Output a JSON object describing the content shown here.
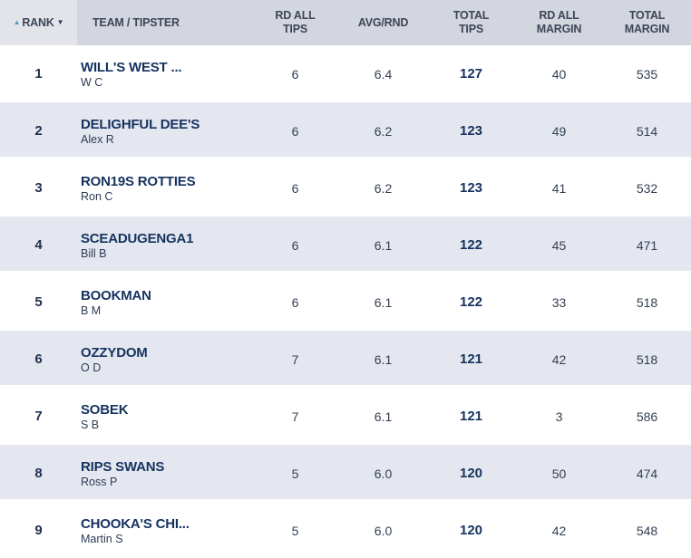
{
  "colors": {
    "header_bg": "#d3d6df",
    "rank_header_bg": "#e2e4ea",
    "stripe_row_bg": "#e4e7ef",
    "navy_text": "#15325f",
    "header_text": "#3d4657",
    "number_text": "#333f53",
    "sort_asc_arrow": "#4d9cba",
    "sort_desc_arrow": "#2e3a50"
  },
  "icons": {
    "sort_asc": "▲",
    "sort_desc": "▼"
  },
  "table": {
    "columns": [
      {
        "id": "rank",
        "line1": "RANK"
      },
      {
        "id": "team_tipster",
        "line1": "TEAM / TIPSTER"
      },
      {
        "id": "rd_all_tips",
        "line1": "RD ALL",
        "line2": "TIPS"
      },
      {
        "id": "avg_rnd",
        "line1": "AVG/RND"
      },
      {
        "id": "total_tips",
        "line1": "TOTAL",
        "line2": "TIPS"
      },
      {
        "id": "rd_all_margin",
        "line1": "RD ALL",
        "line2": "MARGIN"
      },
      {
        "id": "total_margin",
        "line1": "TOTAL",
        "line2": "MARGIN"
      }
    ],
    "rows": [
      {
        "rank": "1",
        "team": "WILL'S WEST ...",
        "tipster": "W C",
        "rd_all_tips": "6",
        "avg_rnd": "6.4",
        "total_tips": "127",
        "rd_all_margin": "40",
        "total_margin": "535"
      },
      {
        "rank": "2",
        "team": "DELIGHFUL DEE'S",
        "tipster": "Alex R",
        "rd_all_tips": "6",
        "avg_rnd": "6.2",
        "total_tips": "123",
        "rd_all_margin": "49",
        "total_margin": "514"
      },
      {
        "rank": "3",
        "team": "RON19S ROTTIES",
        "tipster": "Ron C",
        "rd_all_tips": "6",
        "avg_rnd": "6.2",
        "total_tips": "123",
        "rd_all_margin": "41",
        "total_margin": "532"
      },
      {
        "rank": "4",
        "team": "SCEADUGENGA1",
        "tipster": "Bill B",
        "rd_all_tips": "6",
        "avg_rnd": "6.1",
        "total_tips": "122",
        "rd_all_margin": "45",
        "total_margin": "471"
      },
      {
        "rank": "5",
        "team": "BOOKMAN",
        "tipster": "B M",
        "rd_all_tips": "6",
        "avg_rnd": "6.1",
        "total_tips": "122",
        "rd_all_margin": "33",
        "total_margin": "518"
      },
      {
        "rank": "6",
        "team": "OZZYDOM",
        "tipster": "O D",
        "rd_all_tips": "7",
        "avg_rnd": "6.1",
        "total_tips": "121",
        "rd_all_margin": "42",
        "total_margin": "518"
      },
      {
        "rank": "7",
        "team": "SOBEK",
        "tipster": "S B",
        "rd_all_tips": "7",
        "avg_rnd": "6.1",
        "total_tips": "121",
        "rd_all_margin": "3",
        "total_margin": "586"
      },
      {
        "rank": "8",
        "team": "RIPS SWANS",
        "tipster": "Ross P",
        "rd_all_tips": "5",
        "avg_rnd": "6.0",
        "total_tips": "120",
        "rd_all_margin": "50",
        "total_margin": "474"
      },
      {
        "rank": "9",
        "team": "CHOOKA'S CHI...",
        "tipster": "Martin S",
        "rd_all_tips": "5",
        "avg_rnd": "6.0",
        "total_tips": "120",
        "rd_all_margin": "42",
        "total_margin": "548"
      }
    ]
  }
}
